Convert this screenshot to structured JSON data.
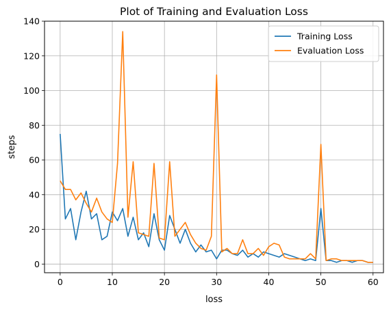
{
  "chart_data": {
    "type": "line",
    "title": "Plot of Training and Evaluation Loss",
    "xlabel": "loss",
    "ylabel": "steps",
    "xlim": [
      -3,
      62
    ],
    "ylim": [
      -5,
      140
    ],
    "xticks": [
      0,
      10,
      20,
      30,
      40,
      50,
      60
    ],
    "yticks": [
      0,
      20,
      40,
      60,
      80,
      100,
      120,
      140
    ],
    "grid": true,
    "legend_position": "top-right",
    "series": [
      {
        "name": "Training Loss",
        "color": "#1f77b4",
        "x": [
          0,
          1,
          2,
          3,
          4,
          5,
          6,
          7,
          8,
          9,
          10,
          11,
          12,
          13,
          14,
          15,
          16,
          17,
          18,
          19,
          20,
          21,
          22,
          23,
          24,
          25,
          26,
          27,
          28,
          29,
          30,
          31,
          32,
          33,
          34,
          35,
          36,
          37,
          38,
          39,
          40,
          41,
          42,
          43,
          44,
          45,
          46,
          47,
          48,
          49,
          50,
          51,
          52,
          53,
          54,
          55,
          56,
          57,
          58,
          59,
          60
        ],
        "values": [
          75,
          26,
          32,
          14,
          30,
          42,
          26,
          29,
          14,
          16,
          30,
          25,
          32,
          16,
          27,
          14,
          18,
          10,
          29,
          14,
          8,
          28,
          20,
          12,
          20,
          12,
          7,
          11,
          7,
          8,
          3,
          8,
          8,
          6,
          5,
          8,
          4,
          6,
          4,
          7,
          6,
          5,
          4,
          6,
          5,
          4,
          3,
          2,
          3,
          2,
          32,
          2,
          2,
          1,
          2,
          2,
          1,
          2,
          2,
          1,
          1
        ]
      },
      {
        "name": "Evaluation Loss",
        "color": "#ff7f0e",
        "x": [
          0,
          1,
          2,
          3,
          4,
          5,
          6,
          7,
          8,
          9,
          10,
          11,
          12,
          13,
          14,
          15,
          16,
          17,
          18,
          19,
          20,
          21,
          22,
          23,
          24,
          25,
          26,
          27,
          28,
          29,
          30,
          31,
          32,
          33,
          34,
          35,
          36,
          37,
          38,
          39,
          40,
          41,
          42,
          43,
          44,
          45,
          46,
          47,
          48,
          49,
          50,
          51,
          52,
          53,
          54,
          55,
          56,
          57,
          58,
          59,
          60
        ],
        "values": [
          48,
          43,
          43,
          37,
          41,
          35,
          30,
          38,
          30,
          26,
          24,
          58,
          134,
          27,
          59,
          18,
          17,
          16,
          58,
          15,
          14,
          59,
          16,
          20,
          24,
          17,
          12,
          9,
          8,
          16,
          109,
          7,
          9,
          6,
          6,
          14,
          6,
          6,
          9,
          5,
          10,
          12,
          11,
          4,
          3,
          3,
          3,
          3,
          6,
          3,
          69,
          2,
          3,
          3,
          2,
          2,
          2,
          2,
          2,
          1,
          1
        ]
      }
    ]
  }
}
